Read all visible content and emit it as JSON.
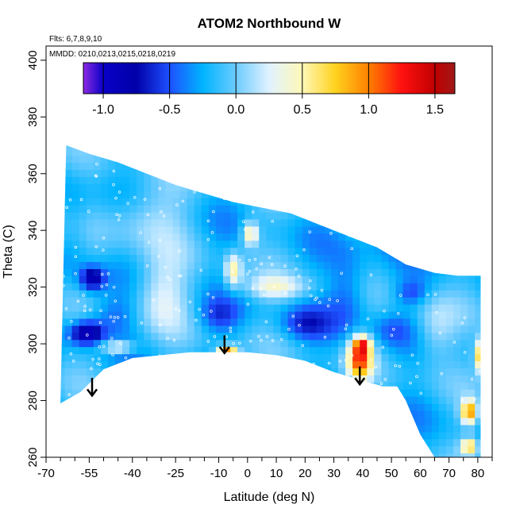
{
  "chart_data": {
    "type": "heatmap",
    "title": "ATOM2 Northbound W",
    "subtitle_flights": "Flts: 6,7,8,9,10",
    "subtitle_dates": "MMDD: 0210,0213,0215,0218,0219",
    "xlabel": "Latitude (deg N)",
    "ylabel": "Theta (C)",
    "xlim": [
      -70,
      85
    ],
    "ylim": [
      260,
      405
    ],
    "x_ticks": [
      -70,
      -55,
      -40,
      -25,
      -10,
      0,
      10,
      20,
      30,
      40,
      50,
      60,
      70,
      80
    ],
    "x_tick_labels": [
      "-70",
      "-55",
      "-40",
      "-25",
      "-10",
      "0",
      "10",
      "20",
      "30",
      "40",
      "50",
      "60",
      "70",
      "80"
    ],
    "x_minor_ticks": [
      -65,
      -60,
      -50,
      -45,
      -35,
      -30,
      -20,
      -15,
      -5,
      5,
      15,
      25,
      35,
      45,
      55,
      65,
      75,
      85
    ],
    "y_ticks": [
      260,
      280,
      300,
      320,
      340,
      360,
      380,
      400
    ],
    "y_tick_labels": [
      "260",
      "280",
      "300",
      "320",
      "340",
      "360",
      "380",
      "400"
    ],
    "colorbar": {
      "range": [
        -1.15,
        1.65
      ],
      "ticks": [
        -1.0,
        -0.5,
        0.0,
        0.5,
        1.0,
        1.5
      ],
      "tick_labels": [
        "-1.0",
        "-0.5",
        "0.0",
        "0.5",
        "1.0",
        "1.5"
      ],
      "stops": [
        [
          -1.15,
          "#8b2be2"
        ],
        [
          -1.0,
          "#0a00c8"
        ],
        [
          -0.75,
          "#0000a8"
        ],
        [
          -0.5,
          "#1e50ff"
        ],
        [
          -0.25,
          "#00b4ff"
        ],
        [
          0.0,
          "#6ccbff"
        ],
        [
          0.25,
          "#e0f2ff"
        ],
        [
          0.5,
          "#fff8b8"
        ],
        [
          0.75,
          "#ffd21e"
        ],
        [
          1.0,
          "#ff8000"
        ],
        [
          1.25,
          "#ff1010"
        ],
        [
          1.5,
          "#c00000"
        ],
        [
          1.65,
          "#a01818"
        ]
      ]
    },
    "field": {
      "base_value": -0.18,
      "top_boundary": [
        [
          -63,
          370
        ],
        [
          -55,
          367
        ],
        [
          -45,
          364
        ],
        [
          -35,
          360
        ],
        [
          -25,
          356
        ],
        [
          -15,
          353
        ],
        [
          -5,
          350
        ],
        [
          5,
          348
        ],
        [
          15,
          346
        ],
        [
          25,
          342
        ],
        [
          35,
          338
        ],
        [
          45,
          334
        ],
        [
          55,
          328
        ],
        [
          65,
          325
        ],
        [
          73,
          324
        ],
        [
          81,
          324
        ]
      ],
      "bottom_boundary": [
        [
          -65,
          279
        ],
        [
          -58,
          283
        ],
        [
          -50,
          291
        ],
        [
          -40,
          295
        ],
        [
          -30,
          296
        ],
        [
          -20,
          297
        ],
        [
          -10,
          297
        ],
        [
          0,
          297
        ],
        [
          10,
          296
        ],
        [
          20,
          294
        ],
        [
          30,
          290
        ],
        [
          40,
          287
        ],
        [
          47,
          285
        ],
        [
          52,
          285
        ],
        [
          55,
          280
        ],
        [
          60,
          268
        ],
        [
          65,
          260
        ],
        [
          81,
          260
        ]
      ],
      "features": [
        {
          "x": -54,
          "y": 323,
          "sx": 3,
          "sy": 3,
          "v": -0.9
        },
        {
          "x": -56,
          "y": 304,
          "sx": 4,
          "sy": 3,
          "v": -1.0
        },
        {
          "x": -47,
          "y": 310,
          "sx": 6,
          "sy": 5,
          "v": -0.45
        },
        {
          "x": -45,
          "y": 299,
          "sx": 4,
          "sy": 1.5,
          "v": 0.55
        },
        {
          "x": -30,
          "y": 318,
          "sx": 7,
          "sy": 9,
          "v": 0.25
        },
        {
          "x": -35,
          "y": 345,
          "sx": 10,
          "sy": 8,
          "v": 0.15
        },
        {
          "x": -10,
          "y": 310,
          "sx": 5,
          "sy": 4,
          "v": -0.5
        },
        {
          "x": -7,
          "y": 298,
          "sx": 2.5,
          "sy": 1.2,
          "v": 1.05
        },
        {
          "x": -5,
          "y": 326,
          "sx": 2,
          "sy": 4,
          "v": 0.55
        },
        {
          "x": 1,
          "y": 339,
          "sx": 2,
          "sy": 3,
          "v": 0.6
        },
        {
          "x": 10,
          "y": 320,
          "sx": 8,
          "sy": 3,
          "v": 0.3
        },
        {
          "x": 20,
          "y": 307,
          "sx": 6,
          "sy": 4,
          "v": -0.55
        },
        {
          "x": 35,
          "y": 318,
          "sx": 5,
          "sy": 10,
          "v": -0.5
        },
        {
          "x": 39,
          "y": 295,
          "sx": 3,
          "sy": 5,
          "v": 1.1
        },
        {
          "x": 40,
          "y": 300,
          "sx": 2,
          "sy": 2,
          "v": 0.6
        },
        {
          "x": 50,
          "y": 305,
          "sx": 5,
          "sy": 4,
          "v": -0.4
        },
        {
          "x": 57,
          "y": 318,
          "sx": 4,
          "sy": 3,
          "v": -0.5
        },
        {
          "x": 65,
          "y": 305,
          "sx": 5,
          "sy": 8,
          "v": 0.15
        },
        {
          "x": 77,
          "y": 276,
          "sx": 2,
          "sy": 3,
          "v": 0.9
        },
        {
          "x": 77,
          "y": 264,
          "sx": 2,
          "sy": 2,
          "v": 0.7
        },
        {
          "x": 81,
          "y": 296,
          "sx": 1.5,
          "sy": 4,
          "v": 0.8
        },
        {
          "x": 48,
          "y": 338,
          "sx": 6,
          "sy": 5,
          "v": -0.35
        },
        {
          "x": -60,
          "y": 340,
          "sx": 4,
          "sy": 12,
          "v": -0.35
        }
      ]
    },
    "arrows": [
      {
        "x": -54,
        "y_top": 288,
        "y_bottom": 282
      },
      {
        "x": -8,
        "y_top": 303,
        "y_bottom": 297
      },
      {
        "x": 39,
        "y_top": 292,
        "y_bottom": 286
      }
    ],
    "sample_track_count": 320
  }
}
